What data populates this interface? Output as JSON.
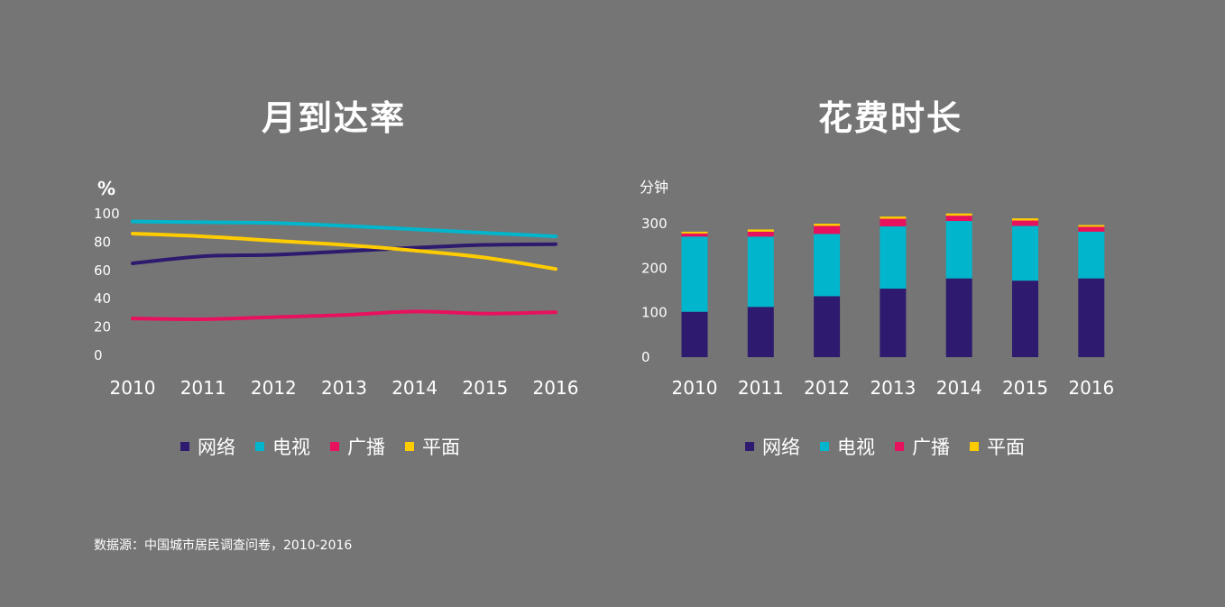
{
  "chart_data": [
    {
      "type": "line",
      "title": "月到达率",
      "ylabel": "%",
      "x": [
        "2010",
        "2011",
        "2012",
        "2013",
        "2014",
        "2015",
        "2016"
      ],
      "ylim": [
        0,
        100
      ],
      "yticks": [
        0,
        20,
        40,
        60,
        80,
        100
      ],
      "series": [
        {
          "name": "网络",
          "color": "#2e1a6e",
          "values": [
            65,
            70,
            71,
            73.5,
            76,
            78,
            78.5
          ]
        },
        {
          "name": "电视",
          "color": "#00b5cc",
          "values": [
            94.5,
            94,
            93.5,
            91.5,
            89,
            86.5,
            84
          ]
        },
        {
          "name": "广播",
          "color": "#e8115e",
          "values": [
            26,
            25.5,
            27,
            28.5,
            31,
            29.5,
            30.5
          ]
        },
        {
          "name": "平面",
          "color": "#ffcc00",
          "values": [
            86,
            84,
            81,
            78,
            74,
            69,
            61
          ]
        }
      ],
      "legend": "bottom",
      "grid": false
    },
    {
      "type": "bar",
      "stacked": true,
      "title": "花费时长",
      "ylabel": "分钟",
      "categories": [
        "2010",
        "2011",
        "2012",
        "2013",
        "2014",
        "2015",
        "2016"
      ],
      "ylim": [
        0,
        300
      ],
      "yticks": [
        0,
        100,
        200,
        300
      ],
      "series": [
        {
          "name": "网络",
          "color": "#2e1a6e",
          "values": [
            102,
            113,
            137,
            154,
            177,
            172,
            177
          ]
        },
        {
          "name": "电视",
          "color": "#00b5cc",
          "values": [
            169,
            158,
            140,
            140,
            129,
            123,
            105
          ]
        },
        {
          "name": "广播",
          "color": "#e8115e",
          "values": [
            7,
            11,
            18,
            17,
            12,
            12,
            11
          ]
        },
        {
          "name": "平面",
          "color": "#ffcc00",
          "values": [
            4,
            5,
            5,
            5,
            5,
            5,
            4
          ]
        }
      ],
      "legend": "bottom",
      "grid": false
    }
  ],
  "source": "数据源：中国城市居民调查问卷，2010-2016"
}
